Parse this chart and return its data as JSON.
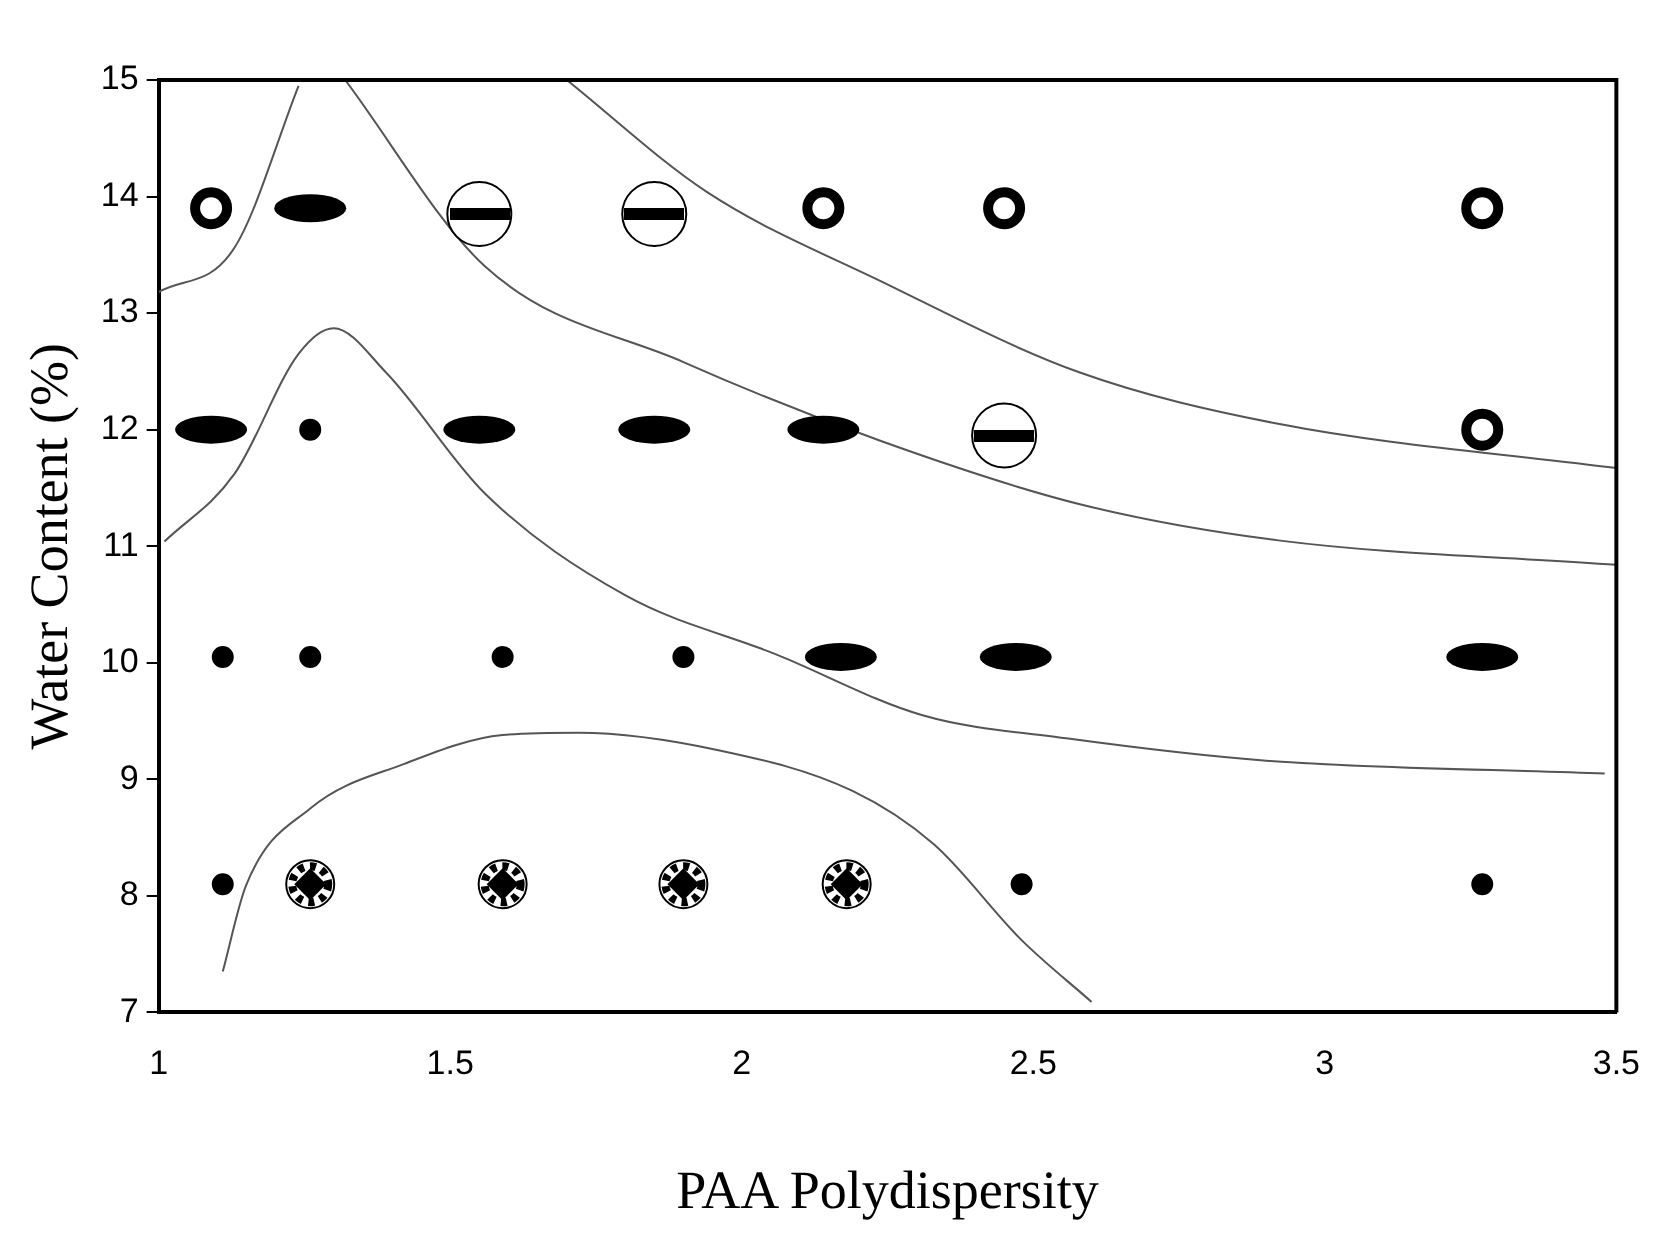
{
  "chart_data": {
    "type": "scatter",
    "xlabel": "PAA Polydispersity",
    "ylabel": "Water Content (%)",
    "xlim": [
      1,
      3.5
    ],
    "xticks": [
      1,
      1.5,
      2,
      2.5,
      3,
      3.5
    ],
    "ylim": [
      7,
      15
    ],
    "yticks": [
      7,
      8,
      9,
      10,
      11,
      12,
      13,
      14,
      15
    ],
    "grid": false,
    "legend": false,
    "series": [
      {
        "marker": "circle",
        "color": "#000000",
        "x": [
          1.09,
          2.14,
          2.45,
          3.27,
          3.27
        ],
        "values": [
          13.9,
          13.9,
          13.9,
          13.9,
          12
        ]
      },
      {
        "marker": "circle",
        "color": "#000000",
        "x": [
          1.26,
          1.09,
          1.55,
          1.85,
          2.14,
          2.17,
          2.47,
          3.27
        ],
        "values": [
          13.9,
          12,
          12,
          12,
          12,
          10.05,
          10.05,
          10.05
        ]
      },
      {
        "marker": "circle",
        "color": "#000000",
        "x": [
          1.55,
          1.85,
          2.45
        ],
        "values": [
          13.85,
          13.85,
          11.95
        ]
      },
      {
        "marker": "circle",
        "color": "#000000",
        "x": [
          1.26,
          1.11,
          1.26,
          1.59,
          1.9,
          1.11,
          2.48,
          3.27
        ],
        "values": [
          12,
          10.05,
          10.05,
          10.05,
          10.05,
          8.1,
          8.1,
          8.1
        ]
      },
      {
        "marker": "circle",
        "color": "#000000",
        "x": [
          1.26,
          1.59,
          1.9,
          2.18
        ],
        "values": [
          8.1,
          8.1,
          8.1,
          8.1
        ]
      },
      {
        "type": "line",
        "marker": "none",
        "color": "#555555",
        "x": [
          1.0,
          1.13,
          1.24
        ],
        "values": [
          13.18,
          13.56,
          14.95
        ]
      },
      {
        "type": "line",
        "marker": "none",
        "color": "#555555",
        "x": [
          1.32,
          1.56,
          1.9,
          2.24,
          2.58,
          2.92,
          3.5
        ],
        "values": [
          15,
          13.4,
          12.58,
          11.9,
          11.36,
          11.05,
          10.84
        ]
      },
      {
        "type": "line",
        "marker": "none",
        "color": "#555555",
        "x": [
          1.7,
          1.94,
          2.24,
          2.58,
          2.92,
          3.5
        ],
        "values": [
          15,
          14.04,
          13.27,
          12.49,
          12.05,
          11.67
        ]
      },
      {
        "type": "line",
        "marker": "none",
        "color": "#555555",
        "x": [
          1.01,
          1.13,
          1.24,
          1.3,
          1.39,
          1.56,
          1.8,
          2.06,
          2.31,
          2.56,
          2.9,
          3.48
        ],
        "values": [
          11.04,
          11.62,
          12.65,
          12.87,
          12.49,
          11.45,
          10.58,
          10.07,
          9.55,
          9.35,
          9.16,
          9.05
        ]
      },
      {
        "type": "line",
        "marker": "none",
        "color": "#555555",
        "x": [
          1.11,
          1.15,
          1.26,
          1.42,
          1.59,
          1.72,
          1.96,
          2.19,
          2.33,
          2.48,
          2.6
        ],
        "values": [
          7.35,
          8.09,
          8.75,
          9.13,
          9.38,
          9.4,
          9.25,
          8.9,
          8.44,
          7.62,
          7.09
        ]
      }
    ]
  }
}
